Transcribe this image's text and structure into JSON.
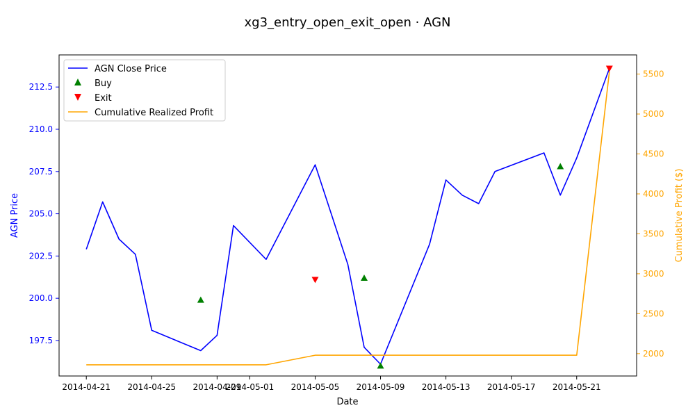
{
  "chart_data": {
    "type": "line",
    "title": "xg3_entry_open_exit_open · AGN",
    "xlabel": "Date",
    "ylabel_left": "AGN Price",
    "ylabel_right": "Cumulative Profit ($)",
    "x_ticks": [
      "2014-04-21",
      "2014-04-25",
      "2014-04-29",
      "2014-05-01",
      "2014-05-05",
      "2014-05-09",
      "2014-05-13",
      "2014-05-17",
      "2014-05-21"
    ],
    "y_left_ticks": [
      "197.5",
      "200.0",
      "202.5",
      "205.0",
      "207.5",
      "210.0",
      "212.5"
    ],
    "y_right_ticks": [
      "2000",
      "2500",
      "3000",
      "3500",
      "4000",
      "4500",
      "5000",
      "5500"
    ],
    "ylim_left": [
      195.4,
      214.4
    ],
    "ylim_right": [
      1720,
      5740
    ],
    "xlim": [
      "2014-04-19 08:00",
      "2014-05-24 16:00"
    ],
    "legend_position": "top-left",
    "colors": {
      "price": "#0000ff",
      "buy": "#008000",
      "exit": "#ff0000",
      "profit": "#ffa500",
      "right_axis": "#ffa500"
    },
    "series": [
      {
        "name": "AGN Close Price",
        "axis": "left",
        "x": [
          "2014-04-21",
          "2014-04-22",
          "2014-04-23",
          "2014-04-24",
          "2014-04-25",
          "2014-04-28",
          "2014-04-29",
          "2014-04-30",
          "2014-05-02",
          "2014-05-05",
          "2014-05-07",
          "2014-05-08",
          "2014-05-09",
          "2014-05-12",
          "2014-05-13",
          "2014-05-14",
          "2014-05-15",
          "2014-05-16",
          "2014-05-19",
          "2014-05-20",
          "2014-05-21",
          "2014-05-23"
        ],
        "values": [
          202.9,
          205.7,
          203.5,
          202.6,
          198.1,
          196.9,
          197.8,
          204.3,
          202.3,
          207.9,
          202.0,
          197.1,
          196.1,
          203.2,
          207.0,
          206.1,
          205.6,
          207.5,
          208.6,
          206.1,
          208.3,
          213.6
        ]
      },
      {
        "name": "Buy",
        "axis": "left",
        "marker": "^",
        "x": [
          "2014-04-28",
          "2014-05-08",
          "2014-05-09",
          "2014-05-20"
        ],
        "values": [
          199.9,
          201.2,
          196.0,
          207.8
        ]
      },
      {
        "name": "Exit",
        "axis": "left",
        "marker": "v",
        "x": [
          "2014-05-05",
          "2014-05-23"
        ],
        "values": [
          201.1,
          213.6
        ]
      },
      {
        "name": "Cumulative Realized Profit",
        "axis": "right",
        "x": [
          "2014-04-21",
          "2014-05-02",
          "2014-05-05",
          "2014-05-21",
          "2014-05-23"
        ],
        "values": [
          1860,
          1860,
          1980,
          1980,
          5530
        ]
      }
    ]
  }
}
